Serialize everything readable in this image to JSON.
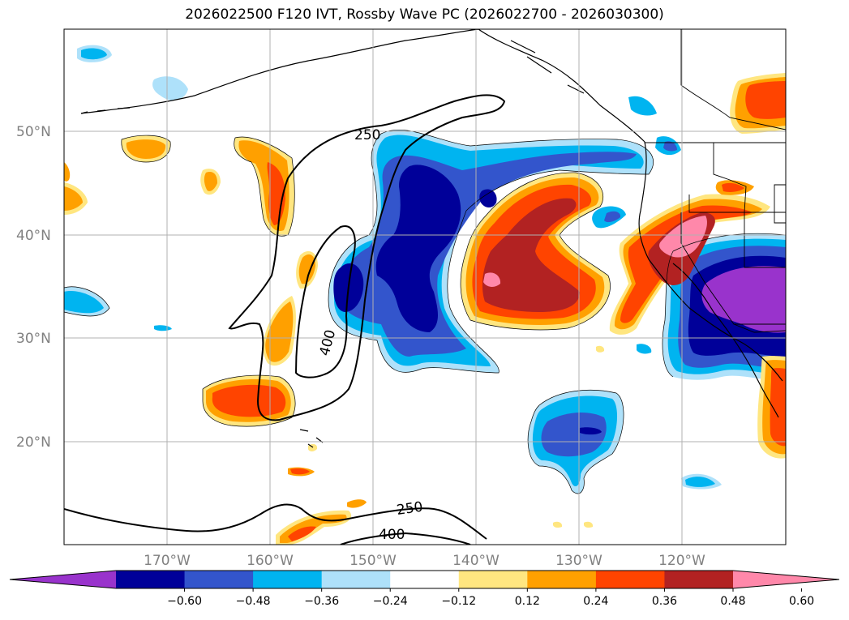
{
  "title": "2026022500 F120 IVT, Rossby Wave PC (2026022700 - 2026030300)",
  "lat_labels": [
    "50°N",
    "40°N",
    "30°N",
    "20°N"
  ],
  "lon_labels": [
    "170°W",
    "160°W",
    "150°W",
    "140°W",
    "130°W",
    "120°W"
  ],
  "contour_labels": [
    "250",
    "400",
    "250",
    "400"
  ],
  "colorbar": {
    "ticks": [
      "−0.60",
      "−0.48",
      "−0.36",
      "−0.24",
      "−0.12",
      "0.12",
      "0.24",
      "0.36",
      "0.48",
      "0.60"
    ],
    "colors": [
      "#9933cc",
      "#000099",
      "#3355cc",
      "#00b4f0",
      "#aee1fa",
      "#ffffff",
      "#ffe680",
      "#ffa000",
      "#ff4400",
      "#b22222",
      "#ff88aa"
    ]
  },
  "map_extent": {
    "lon": [
      -180,
      -110
    ],
    "lat": [
      10,
      60
    ]
  }
}
